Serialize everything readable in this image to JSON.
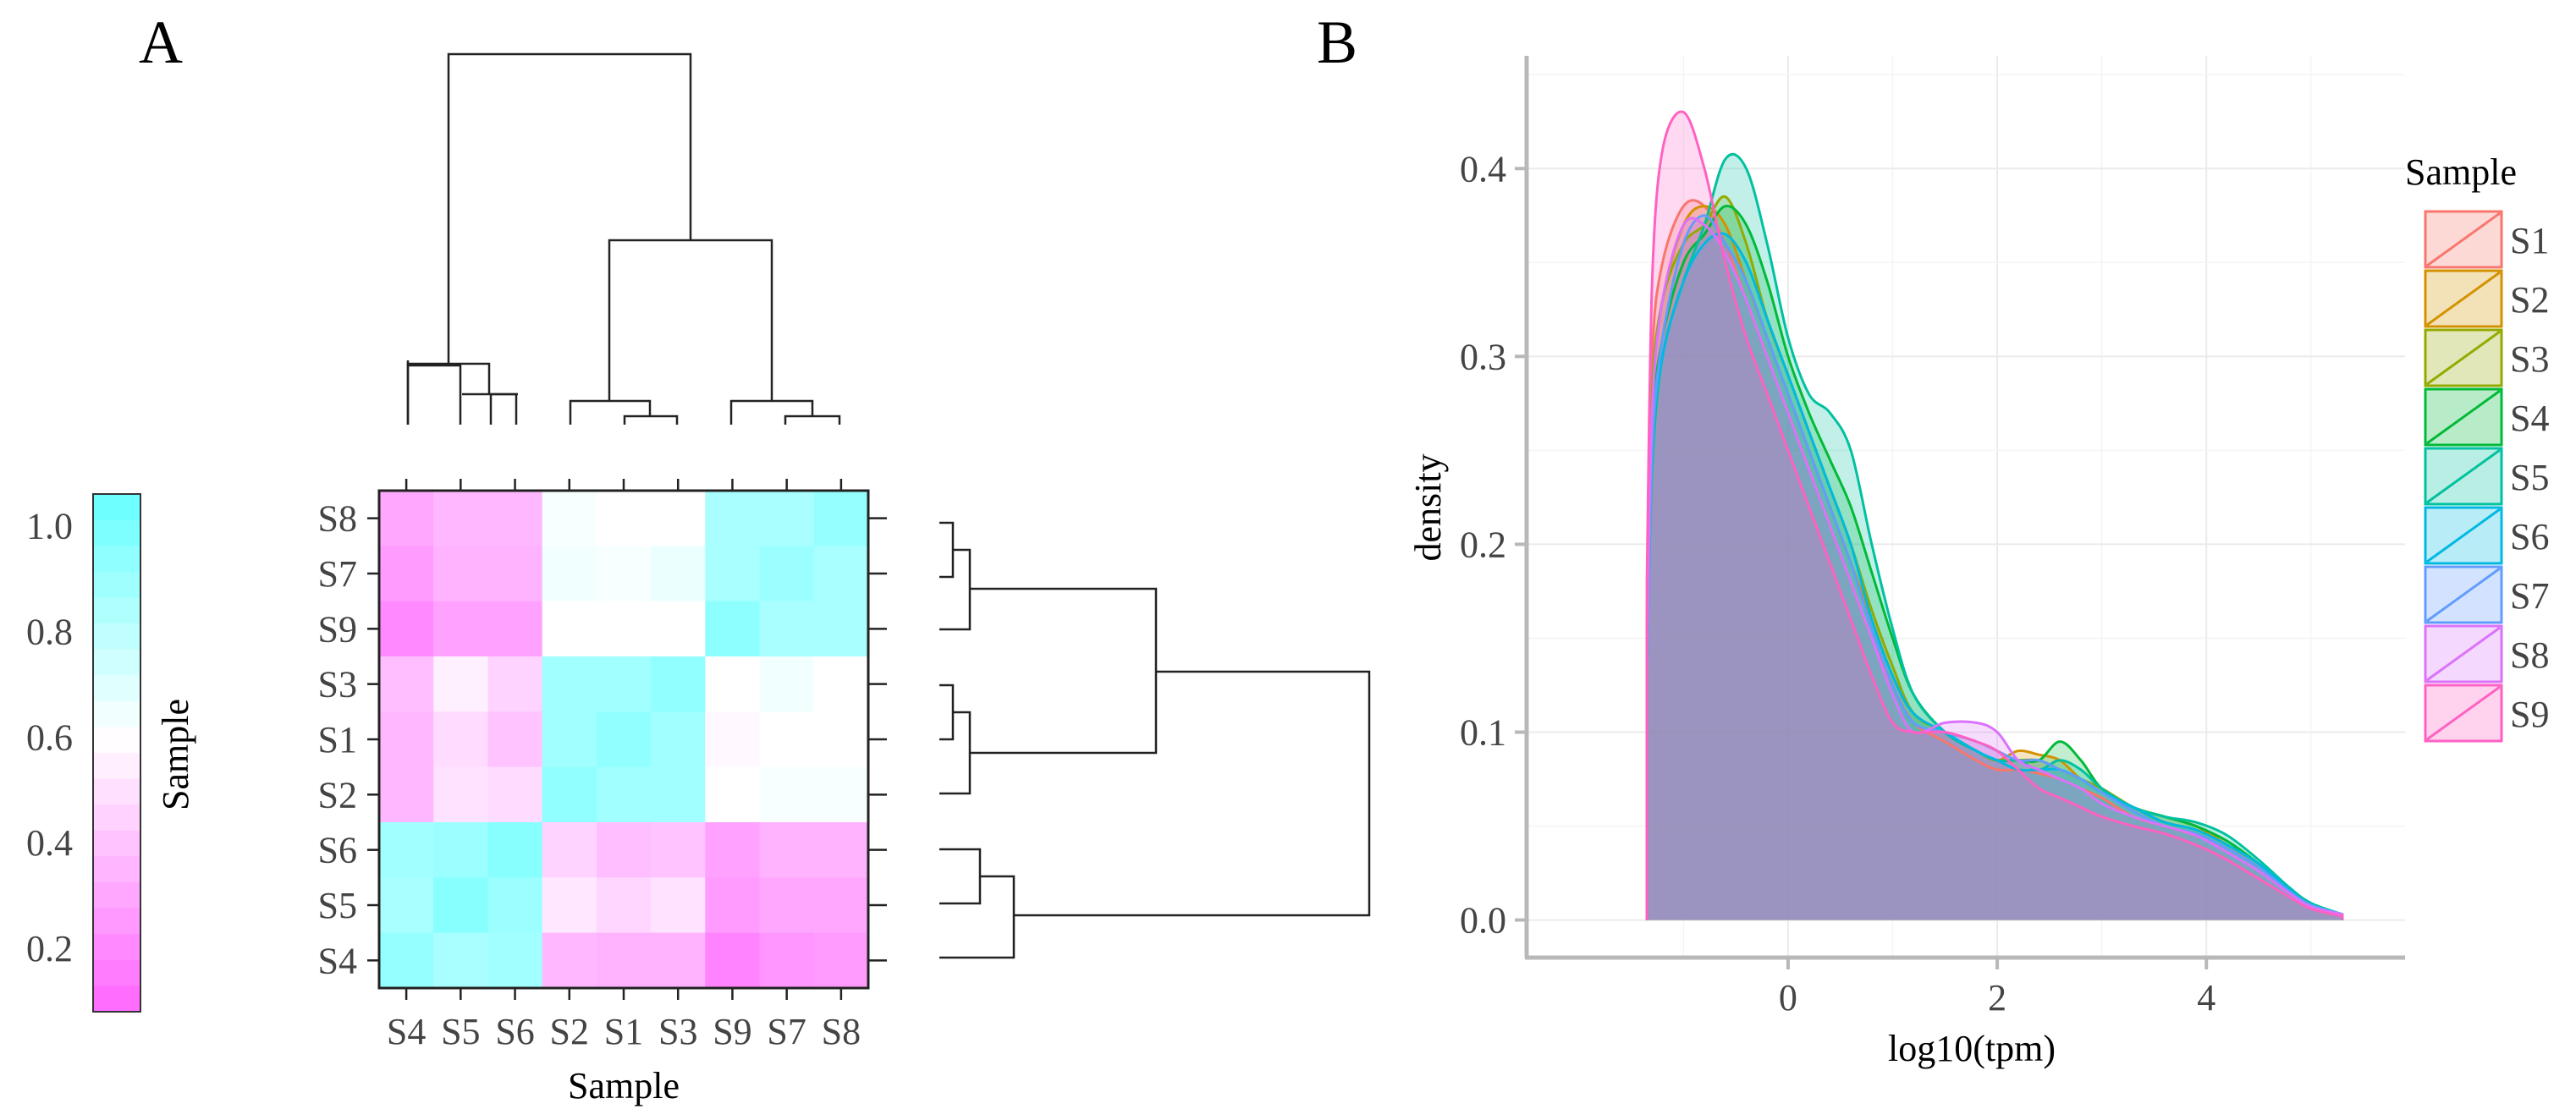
{
  "figure": {
    "panel_a_label": "A",
    "panel_b_label": "B"
  },
  "chart_data": [
    {
      "type": "heatmap",
      "title": "",
      "xlabel": "Sample",
      "ylabel": "",
      "colorbar_title": "Sample",
      "colorbar_ticks": [
        "0.2",
        "0.4",
        "0.6",
        "0.8",
        "1.0"
      ],
      "colorbar_range": [
        0.08,
        1.06
      ],
      "col_labels": [
        "S4",
        "S5",
        "S6",
        "S2",
        "S1",
        "S3",
        "S9",
        "S7",
        "S8"
      ],
      "row_labels": [
        "S8",
        "S7",
        "S9",
        "S3",
        "S1",
        "S2",
        "S6",
        "S5",
        "S4"
      ],
      "colors": {
        "low": "#ff66ff",
        "mid": "#ffffff",
        "high": "#66ffff"
      },
      "values": [
        [
          0.3,
          0.36,
          0.36,
          0.62,
          0.6,
          0.6,
          0.86,
          0.86,
          0.92
        ],
        [
          0.26,
          0.34,
          0.34,
          0.64,
          0.62,
          0.66,
          0.86,
          0.9,
          0.86
        ],
        [
          0.2,
          0.28,
          0.28,
          0.6,
          0.6,
          0.6,
          0.94,
          0.86,
          0.86
        ],
        [
          0.38,
          0.55,
          0.45,
          0.88,
          0.88,
          0.93,
          0.6,
          0.64,
          0.6
        ],
        [
          0.36,
          0.48,
          0.4,
          0.88,
          0.93,
          0.88,
          0.58,
          0.6,
          0.6
        ],
        [
          0.36,
          0.5,
          0.48,
          0.93,
          0.88,
          0.88,
          0.6,
          0.62,
          0.62
        ],
        [
          0.88,
          0.9,
          0.96,
          0.45,
          0.38,
          0.4,
          0.28,
          0.34,
          0.34
        ],
        [
          0.86,
          0.96,
          0.9,
          0.52,
          0.46,
          0.5,
          0.26,
          0.3,
          0.3
        ],
        [
          0.92,
          0.86,
          0.88,
          0.36,
          0.34,
          0.34,
          0.18,
          0.24,
          0.26
        ]
      ]
    },
    {
      "type": "area",
      "title": "",
      "xlabel": "log10(tpm)",
      "ylabel": "density",
      "xlim": [
        -2.5,
        5.9
      ],
      "ylim": [
        -0.02,
        0.46
      ],
      "xticks": [
        0,
        2,
        4
      ],
      "yticks": [
        0.0,
        0.1,
        0.2,
        0.3,
        0.4
      ],
      "ytick_labels": [
        "0.0",
        "0.1",
        "0.2",
        "0.3",
        "0.4"
      ],
      "legend_title": "Sample",
      "legend_position": "right",
      "x": [
        -1.35,
        -1.3,
        -1.2,
        -1.0,
        -0.8,
        -0.6,
        -0.4,
        -0.2,
        0.0,
        0.2,
        0.4,
        0.6,
        0.8,
        1.0,
        1.2,
        1.5,
        1.8,
        2.0,
        2.2,
        2.4,
        2.6,
        2.8,
        3.0,
        3.3,
        3.6,
        3.9,
        4.2,
        4.5,
        4.8,
        5.0,
        5.3
      ],
      "series": [
        {
          "name": "S1",
          "color": "#f8766d",
          "values": [
            0.16,
            0.3,
            0.35,
            0.38,
            0.38,
            0.36,
            0.33,
            0.3,
            0.27,
            0.24,
            0.21,
            0.18,
            0.15,
            0.125,
            0.105,
            0.095,
            0.085,
            0.08,
            0.08,
            0.078,
            0.075,
            0.07,
            0.065,
            0.055,
            0.05,
            0.045,
            0.038,
            0.028,
            0.015,
            0.008,
            0.003
          ]
        },
        {
          "name": "S2",
          "color": "#d39200",
          "values": [
            0.15,
            0.28,
            0.33,
            0.37,
            0.38,
            0.37,
            0.34,
            0.31,
            0.28,
            0.25,
            0.22,
            0.19,
            0.16,
            0.13,
            0.11,
            0.1,
            0.09,
            0.085,
            0.09,
            0.088,
            0.085,
            0.075,
            0.07,
            0.06,
            0.055,
            0.05,
            0.04,
            0.03,
            0.016,
            0.008,
            0.003
          ]
        },
        {
          "name": "S3",
          "color": "#93aa00",
          "values": [
            0.15,
            0.28,
            0.33,
            0.36,
            0.37,
            0.385,
            0.36,
            0.32,
            0.29,
            0.26,
            0.23,
            0.2,
            0.165,
            0.135,
            0.11,
            0.1,
            0.09,
            0.085,
            0.085,
            0.085,
            0.08,
            0.075,
            0.07,
            0.06,
            0.052,
            0.048,
            0.04,
            0.03,
            0.016,
            0.008,
            0.003
          ]
        },
        {
          "name": "S4",
          "color": "#00ba38",
          "values": [
            0.14,
            0.26,
            0.31,
            0.35,
            0.365,
            0.38,
            0.37,
            0.34,
            0.3,
            0.27,
            0.245,
            0.22,
            0.185,
            0.15,
            0.12,
            0.1,
            0.09,
            0.085,
            0.085,
            0.085,
            0.095,
            0.085,
            0.07,
            0.06,
            0.055,
            0.05,
            0.042,
            0.03,
            0.016,
            0.008,
            0.003
          ]
        },
        {
          "name": "S5",
          "color": "#00c19f",
          "values": [
            0.13,
            0.24,
            0.3,
            0.34,
            0.37,
            0.405,
            0.4,
            0.36,
            0.31,
            0.28,
            0.27,
            0.25,
            0.2,
            0.155,
            0.12,
            0.1,
            0.09,
            0.085,
            0.085,
            0.08,
            0.085,
            0.08,
            0.07,
            0.06,
            0.055,
            0.052,
            0.045,
            0.032,
            0.017,
            0.009,
            0.003
          ]
        },
        {
          "name": "S6",
          "color": "#00b9e3",
          "values": [
            0.13,
            0.25,
            0.3,
            0.34,
            0.36,
            0.365,
            0.35,
            0.32,
            0.29,
            0.26,
            0.23,
            0.2,
            0.16,
            0.13,
            0.11,
            0.1,
            0.09,
            0.085,
            0.08,
            0.08,
            0.08,
            0.075,
            0.068,
            0.06,
            0.052,
            0.048,
            0.04,
            0.03,
            0.016,
            0.008,
            0.003
          ]
        },
        {
          "name": "S7",
          "color": "#619cff",
          "values": [
            0.13,
            0.25,
            0.31,
            0.36,
            0.375,
            0.36,
            0.34,
            0.31,
            0.28,
            0.25,
            0.22,
            0.19,
            0.155,
            0.125,
            0.105,
            0.1,
            0.095,
            0.09,
            0.085,
            0.085,
            0.08,
            0.075,
            0.068,
            0.058,
            0.05,
            0.046,
            0.038,
            0.028,
            0.015,
            0.008,
            0.003
          ]
        },
        {
          "name": "S8",
          "color": "#db72fb",
          "values": [
            0.14,
            0.27,
            0.33,
            0.37,
            0.37,
            0.355,
            0.33,
            0.3,
            0.27,
            0.24,
            0.21,
            0.18,
            0.15,
            0.12,
            0.1,
            0.105,
            0.105,
            0.1,
            0.085,
            0.08,
            0.075,
            0.07,
            0.062,
            0.055,
            0.05,
            0.045,
            0.036,
            0.026,
            0.014,
            0.007,
            0.003
          ]
        },
        {
          "name": "S9",
          "color": "#ff61c3",
          "values": [
            0.18,
            0.34,
            0.41,
            0.43,
            0.4,
            0.35,
            0.31,
            0.28,
            0.25,
            0.22,
            0.19,
            0.16,
            0.13,
            0.105,
            0.1,
            0.1,
            0.095,
            0.09,
            0.08,
            0.07,
            0.065,
            0.06,
            0.055,
            0.05,
            0.046,
            0.04,
            0.032,
            0.022,
            0.012,
            0.006,
            0.002
          ]
        }
      ]
    }
  ]
}
